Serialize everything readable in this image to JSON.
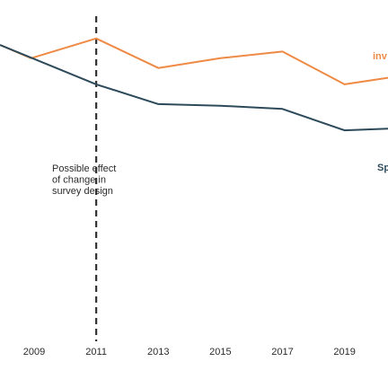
{
  "chart_data": {
    "type": "line",
    "x_ticks": [
      "2009",
      "2011",
      "2013",
      "2015",
      "2017",
      "2019"
    ],
    "xlim": [
      2007.9,
      2020.4
    ],
    "ylim": [
      0,
      100
    ],
    "grid": false,
    "series": [
      {
        "name": "inv",
        "color": "#ef8a45",
        "x": [
          2007.9,
          2008.9,
          2011.0,
          2013.0,
          2015.0,
          2017.0,
          2019.0,
          2020.4
        ],
        "y": [
          89,
          85,
          91,
          82,
          85,
          87,
          77,
          79
        ]
      },
      {
        "name": "Sp",
        "color": "#2d4a5a",
        "x": [
          2007.9,
          2011.0,
          2013.0,
          2015.0,
          2017.0,
          2019.0,
          2020.4
        ],
        "y": [
          89,
          77,
          71,
          70.5,
          69.5,
          63,
          63.5
        ]
      }
    ],
    "annotation": {
      "year": 2011,
      "lines": [
        "Possible effect",
        "of change in",
        "survey design"
      ]
    }
  }
}
